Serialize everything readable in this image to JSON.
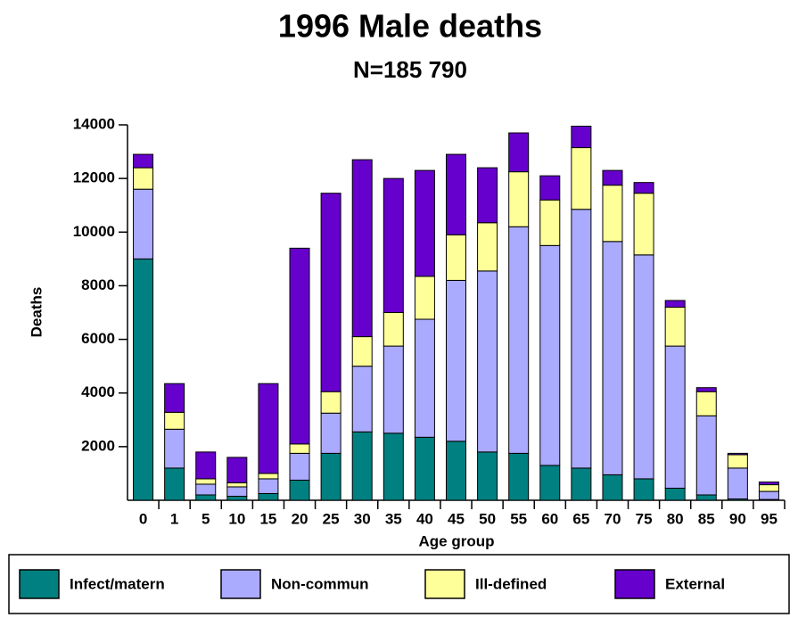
{
  "chart_data": {
    "type": "stacked_bar",
    "title": "1996 Male deaths",
    "subtitle": "N=185 790",
    "x_label": "Age group",
    "y_label": "Deaths",
    "categories": [
      "0",
      "1",
      "5",
      "10",
      "15",
      "20",
      "25",
      "30",
      "35",
      "40",
      "45",
      "50",
      "55",
      "60",
      "65",
      "70",
      "75",
      "80",
      "85",
      "90",
      "95"
    ],
    "series": [
      {
        "name": "Infect/matern",
        "color": "#008080",
        "values": [
          9000,
          1200,
          200,
          150,
          250,
          750,
          1750,
          2550,
          2500,
          2350,
          2200,
          1800,
          1750,
          1300,
          1200,
          950,
          800,
          450,
          200,
          50,
          30
        ]
      },
      {
        "name": "Non-commun",
        "color": "#aaaaff",
        "values": [
          2600,
          1450,
          400,
          350,
          550,
          1000,
          1500,
          2450,
          3250,
          4400,
          6000,
          6750,
          8450,
          8200,
          9650,
          8700,
          8350,
          5300,
          2950,
          1150,
          300
        ]
      },
      {
        "name": "Ill-defined",
        "color": "#ffff99",
        "values": [
          800,
          630,
          200,
          150,
          200,
          350,
          800,
          1100,
          1250,
          1600,
          1700,
          1800,
          2050,
          1700,
          2300,
          2100,
          2300,
          1450,
          900,
          500,
          250
        ]
      },
      {
        "name": "External",
        "color": "#6600cc",
        "values": [
          500,
          1070,
          1000,
          950,
          3350,
          7300,
          7400,
          6600,
          5000,
          3950,
          3000,
          2050,
          1450,
          900,
          800,
          550,
          400,
          250,
          150,
          50,
          100
        ]
      }
    ],
    "ylim": [
      0,
      14000
    ],
    "yticks": [
      2000,
      4000,
      6000,
      8000,
      10000,
      12000,
      14000
    ],
    "legend": "bottom"
  }
}
